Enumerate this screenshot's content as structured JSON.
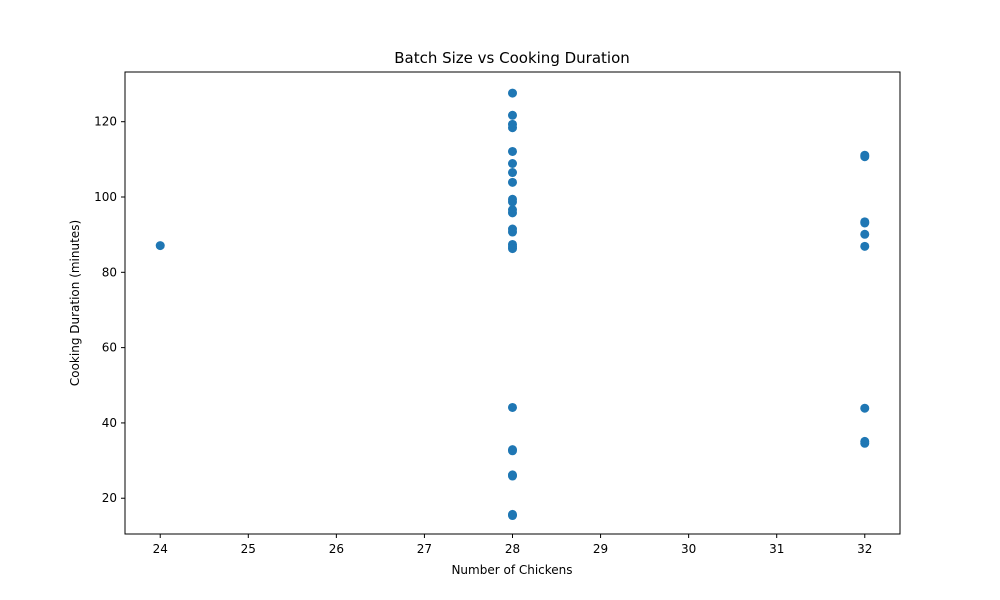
{
  "chart_data": {
    "type": "scatter",
    "title": "Batch Size vs Cooking Duration",
    "xlabel": "Number of Chickens",
    "ylabel": "Cooking Duration (minutes)",
    "xlim": [
      23.6,
      32.4
    ],
    "ylim": [
      10.5,
      133.2
    ],
    "xticks": [
      24,
      25,
      26,
      27,
      28,
      29,
      30,
      31,
      32
    ],
    "yticks": [
      20,
      40,
      60,
      80,
      100,
      120
    ],
    "grid": false,
    "marker_color": "#1f77b4",
    "points": [
      {
        "x": 24,
        "y": 87.1
      },
      {
        "x": 28,
        "y": 127.6
      },
      {
        "x": 28,
        "y": 121.7
      },
      {
        "x": 28,
        "y": 119.3
      },
      {
        "x": 28,
        "y": 118.4
      },
      {
        "x": 28,
        "y": 112.1
      },
      {
        "x": 28,
        "y": 108.9
      },
      {
        "x": 28,
        "y": 106.5
      },
      {
        "x": 28,
        "y": 103.9
      },
      {
        "x": 28,
        "y": 99.4
      },
      {
        "x": 28,
        "y": 98.7
      },
      {
        "x": 28,
        "y": 96.6
      },
      {
        "x": 28,
        "y": 95.8
      },
      {
        "x": 28,
        "y": 91.5
      },
      {
        "x": 28,
        "y": 90.7
      },
      {
        "x": 28,
        "y": 87.4
      },
      {
        "x": 28,
        "y": 86.8
      },
      {
        "x": 28,
        "y": 86.3
      },
      {
        "x": 28,
        "y": 44.1
      },
      {
        "x": 28,
        "y": 32.9
      },
      {
        "x": 28,
        "y": 32.6
      },
      {
        "x": 28,
        "y": 26.2
      },
      {
        "x": 28,
        "y": 25.9
      },
      {
        "x": 28,
        "y": 15.7
      },
      {
        "x": 28,
        "y": 15.4
      },
      {
        "x": 32,
        "y": 111.1
      },
      {
        "x": 32,
        "y": 110.7
      },
      {
        "x": 32,
        "y": 93.4
      },
      {
        "x": 32,
        "y": 93.1
      },
      {
        "x": 32,
        "y": 90.1
      },
      {
        "x": 32,
        "y": 86.9
      },
      {
        "x": 32,
        "y": 43.9
      },
      {
        "x": 32,
        "y": 35.1
      },
      {
        "x": 32,
        "y": 34.6
      }
    ]
  }
}
